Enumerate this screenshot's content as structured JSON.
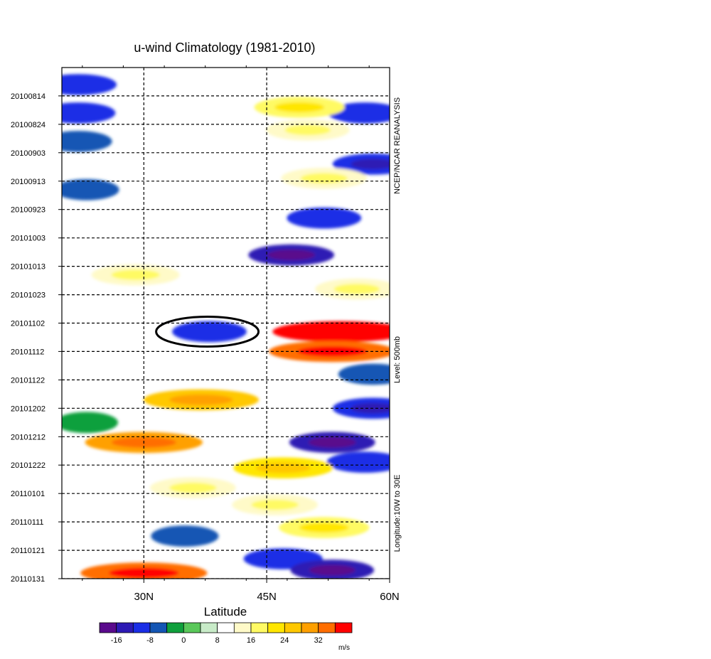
{
  "chart_data": {
    "type": "heatmap",
    "title": "u-wind Climatology (1981-2010)",
    "xlabel": "Latitude",
    "ylabel": "",
    "x_ticks": [
      "30N",
      "45N",
      "60N"
    ],
    "x_tick_values": [
      30,
      45,
      60
    ],
    "xlim": [
      20,
      60
    ],
    "y_ticks": [
      "20100814",
      "20100824",
      "20100903",
      "20100913",
      "20100923",
      "20101003",
      "20101013",
      "20101023",
      "20101102",
      "20101112",
      "20101122",
      "20101202",
      "20101212",
      "20101222",
      "20110101",
      "20110111",
      "20110121",
      "20110131"
    ],
    "ylim": [
      "20100804",
      "20110131"
    ],
    "y_direction": "time increases downward",
    "grid": "dashed lines at each date tick and at 30N and 45N",
    "right_labels": [
      "NCEP/NCAR REANALYSIS",
      "Level:  500mb",
      "Longitude:10W to 30E"
    ],
    "annotation": {
      "shape": "ellipse",
      "date": "20101105",
      "lat_range": [
        31.5,
        44
      ],
      "note": "highlights a blue (negative) core"
    },
    "colorbar": {
      "unit": "m/s",
      "levels": [
        -20,
        -16,
        -12,
        -8,
        -4,
        0,
        4,
        8,
        12,
        16,
        20,
        24,
        28,
        32,
        36,
        40
      ],
      "tick_labels": [
        "-16",
        "-8",
        "0",
        "8",
        "16",
        "24",
        "32"
      ],
      "tick_values": [
        -16,
        -8,
        0,
        8,
        16,
        24,
        32
      ],
      "colors": [
        "#5a0a8c",
        "#2d1ab4",
        "#1a2ee6",
        "#1456b4",
        "#0fa03c",
        "#5ac85a",
        "#c8ebc8",
        "#ffffff",
        "#fffac8",
        "#fffa64",
        "#ffe600",
        "#ffc800",
        "#ffa000",
        "#ff6e00",
        "#ff0000"
      ]
    },
    "features": [
      {
        "date": "20100810",
        "lat": 22,
        "u": -10
      },
      {
        "date": "20100820",
        "lat": 22,
        "u": -9
      },
      {
        "date": "20100830",
        "lat": 22,
        "u": -6
      },
      {
        "date": "20100907",
        "lat": 58,
        "u": -12
      },
      {
        "date": "20100820",
        "lat": 57,
        "u": -9
      },
      {
        "date": "20100818",
        "lat": 49,
        "u": 16
      },
      {
        "date": "20100826",
        "lat": 50,
        "u": 13
      },
      {
        "date": "20100912",
        "lat": 52,
        "u": 14
      },
      {
        "date": "20100916",
        "lat": 23,
        "u": -5
      },
      {
        "date": "20100926",
        "lat": 52,
        "u": -9
      },
      {
        "date": "20101009",
        "lat": 48,
        "u": -14
      },
      {
        "date": "20101021",
        "lat": 56,
        "u": 13
      },
      {
        "date": "20101016",
        "lat": 29,
        "u": 15
      },
      {
        "date": "20101105",
        "lat": 38,
        "u": -9
      },
      {
        "date": "20101105",
        "lat": 54,
        "u": 36
      },
      {
        "date": "20101112",
        "lat": 53,
        "u": 32
      },
      {
        "date": "20101120",
        "lat": 58,
        "u": -7
      },
      {
        "date": "20101129",
        "lat": 37,
        "u": 27
      },
      {
        "date": "20101202",
        "lat": 58,
        "u": -12
      },
      {
        "date": "20101207",
        "lat": 23,
        "u": -4
      },
      {
        "date": "20101214",
        "lat": 30,
        "u": 28
      },
      {
        "date": "20101214",
        "lat": 53,
        "u": -14
      },
      {
        "date": "20101221",
        "lat": 57,
        "u": -10
      },
      {
        "date": "20101223",
        "lat": 47,
        "u": 20
      },
      {
        "date": "20101230",
        "lat": 36,
        "u": 14
      },
      {
        "date": "20110105",
        "lat": 46,
        "u": 14
      },
      {
        "date": "20110116",
        "lat": 35,
        "u": -6
      },
      {
        "date": "20110113",
        "lat": 52,
        "u": 16
      },
      {
        "date": "20110124",
        "lat": 47,
        "u": -11
      },
      {
        "date": "20110128",
        "lat": 53,
        "u": -13
      },
      {
        "date": "20110129",
        "lat": 30,
        "u": 32
      }
    ]
  }
}
